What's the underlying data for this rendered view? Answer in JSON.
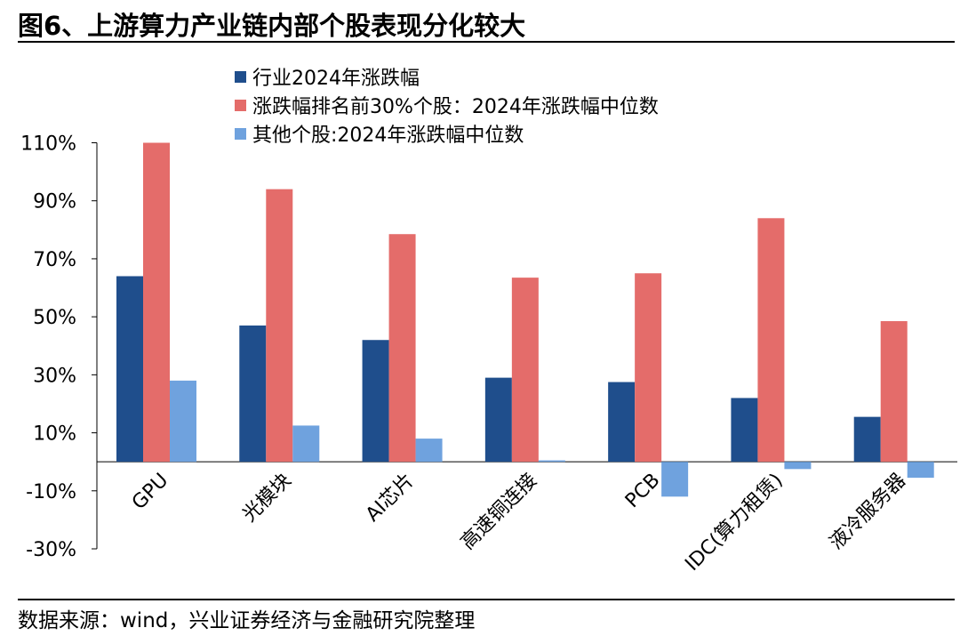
{
  "title": "图6、上游算力产业链内部个股表现分化较大",
  "source": "数据来源：wind，兴业证券经济与金融研究院整理",
  "chart_data": {
    "type": "bar",
    "categories": [
      "GPU",
      "光模块",
      "AI芯片",
      "高速铜连接",
      "PCB",
      "IDC(算力租赁)",
      "液冷服务器"
    ],
    "series": [
      {
        "name": "行业2024年涨跌幅",
        "color": "#1F4E8C",
        "values": [
          64,
          47,
          42,
          29,
          27.5,
          22,
          15.5
        ]
      },
      {
        "name": "涨跌幅排名前30%个股：2024年涨跌幅中位数",
        "color": "#E46C6A",
        "values": [
          110,
          94,
          78.5,
          63.5,
          65,
          84,
          48.5
        ]
      },
      {
        "name": "其他个股:2024年涨跌幅中位数",
        "color": "#6FA2DE",
        "values": [
          28,
          12.5,
          8,
          0.5,
          -12,
          -2.5,
          -5.5
        ]
      }
    ],
    "yticks": [
      "110%",
      "90%",
      "70%",
      "50%",
      "30%",
      "10%",
      "-10%",
      "-30%"
    ],
    "ylim": [
      -30,
      110
    ],
    "legend_position": "top-left"
  }
}
